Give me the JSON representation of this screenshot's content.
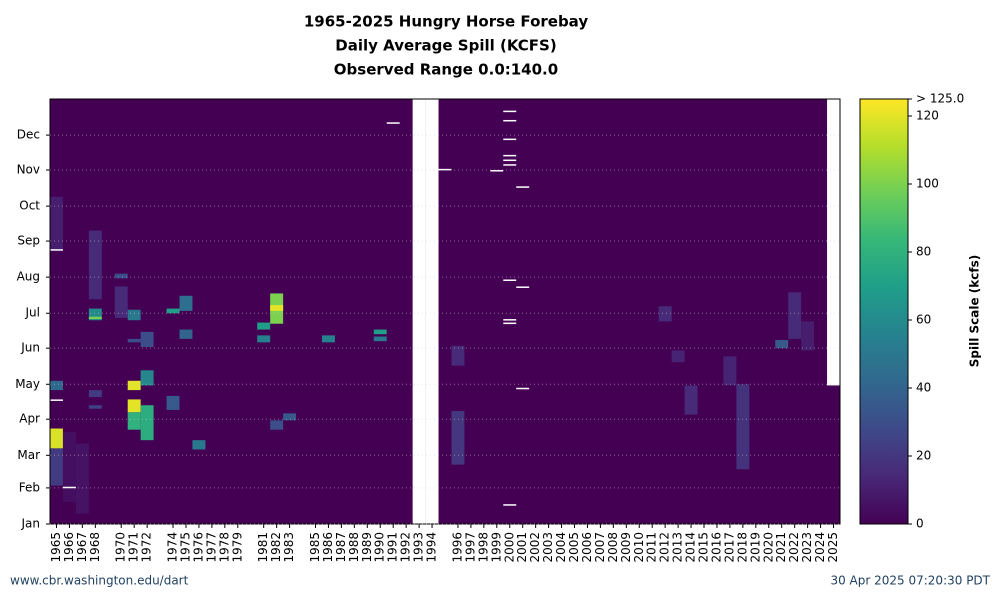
{
  "chart_data": {
    "type": "heatmap",
    "title": [
      "1965-2025 Hungry Horse Forebay",
      "Daily Average Spill (KCFS)",
      "Observed Range 0.0:140.0"
    ],
    "xlim": [
      1964.5,
      2025.5
    ],
    "xticks": [
      1965,
      1966,
      1967,
      1968,
      1970,
      1971,
      1972,
      1974,
      1975,
      1976,
      1977,
      1978,
      1979,
      1981,
      1982,
      1983,
      1985,
      1986,
      1987,
      1988,
      1989,
      1990,
      1991,
      1992,
      1993,
      1994,
      1996,
      1997,
      1998,
      1999,
      2000,
      2001,
      2002,
      2003,
      2004,
      2005,
      2006,
      2007,
      2008,
      2009,
      2010,
      2011,
      2012,
      2013,
      2014,
      2015,
      2016,
      2017,
      2018,
      2019,
      2020,
      2021,
      2022,
      2023,
      2024,
      2025
    ],
    "ylim": [
      1,
      366
    ],
    "yticks": [
      {
        "value": 1,
        "label": "Jan"
      },
      {
        "value": 32,
        "label": "Feb"
      },
      {
        "value": 60,
        "label": "Mar"
      },
      {
        "value": 91,
        "label": "Apr"
      },
      {
        "value": 121,
        "label": "May"
      },
      {
        "value": 152,
        "label": "Jun"
      },
      {
        "value": 182,
        "label": "Jul"
      },
      {
        "value": 213,
        "label": "Aug"
      },
      {
        "value": 244,
        "label": "Sep"
      },
      {
        "value": 274,
        "label": "Oct"
      },
      {
        "value": 305,
        "label": "Nov"
      },
      {
        "value": 335,
        "label": "Dec"
      }
    ],
    "grid": true,
    "colormap": "viridis",
    "zlim": [
      0,
      125
    ],
    "zticks": [
      0,
      20,
      40,
      60,
      80,
      100,
      120,
      {
        "value": 125,
        "label": "> 125.0"
      }
    ],
    "zlabel": "Spill Scale (kcfs)",
    "cells": [
      {
        "year": 1965,
        "from": 34,
        "to": 66,
        "value": 22
      },
      {
        "year": 1965,
        "from": 66,
        "to": 83,
        "value": 118
      },
      {
        "year": 1965,
        "from": 116,
        "to": 124,
        "value": 42
      },
      {
        "year": 1965,
        "from": 236,
        "to": 282,
        "value": 10
      },
      {
        "year": 1966,
        "from": 20,
        "to": 80,
        "value": 5
      },
      {
        "year": 1967,
        "from": 10,
        "to": 70,
        "value": 6
      },
      {
        "year": 1968,
        "from": 176,
        "to": 186,
        "value": 60
      },
      {
        "year": 1968,
        "from": 177,
        "to": 179,
        "value": 100
      },
      {
        "year": 1968,
        "from": 194,
        "to": 253,
        "value": 15
      },
      {
        "year": 1968,
        "from": 100,
        "to": 103,
        "value": 25
      },
      {
        "year": 1968,
        "from": 110,
        "to": 116,
        "value": 22
      },
      {
        "year": 1970,
        "from": 178,
        "to": 205,
        "value": 15
      },
      {
        "year": 1970,
        "from": 212,
        "to": 216,
        "value": 30
      },
      {
        "year": 1971,
        "from": 82,
        "to": 97,
        "value": 80
      },
      {
        "year": 1971,
        "from": 97,
        "to": 108,
        "value": 120
      },
      {
        "year": 1971,
        "from": 116,
        "to": 124,
        "value": 120
      },
      {
        "year": 1971,
        "from": 157,
        "to": 160,
        "value": 30
      },
      {
        "year": 1971,
        "from": 176,
        "to": 185,
        "value": 50
      },
      {
        "year": 1972,
        "from": 73,
        "to": 103,
        "value": 78
      },
      {
        "year": 1972,
        "from": 120,
        "to": 133,
        "value": 58
      },
      {
        "year": 1972,
        "from": 153,
        "to": 166,
        "value": 30
      },
      {
        "year": 1974,
        "from": 99,
        "to": 111,
        "value": 35
      },
      {
        "year": 1974,
        "from": 182,
        "to": 186,
        "value": 70
      },
      {
        "year": 1975,
        "from": 184,
        "to": 197,
        "value": 45
      },
      {
        "year": 1975,
        "from": 160,
        "to": 168,
        "value": 40
      },
      {
        "year": 1976,
        "from": 65,
        "to": 73,
        "value": 50
      },
      {
        "year": 1981,
        "from": 168,
        "to": 174,
        "value": 70
      },
      {
        "year": 1981,
        "from": 157,
        "to": 163,
        "value": 55
      },
      {
        "year": 1982,
        "from": 173,
        "to": 199,
        "value": 100
      },
      {
        "year": 1982,
        "from": 184,
        "to": 189,
        "value": 120
      },
      {
        "year": 1982,
        "from": 82,
        "to": 90,
        "value": 30
      },
      {
        "year": 1983,
        "from": 90,
        "to": 96,
        "value": 35
      },
      {
        "year": 1986,
        "from": 157,
        "to": 163,
        "value": 55
      },
      {
        "year": 1990,
        "from": 164,
        "to": 168,
        "value": 70
      },
      {
        "year": 1990,
        "from": 158,
        "to": 162,
        "value": 50
      },
      {
        "year": 1996,
        "from": 52,
        "to": 98,
        "value": 20
      },
      {
        "year": 1996,
        "from": 137,
        "to": 154,
        "value": 15
      },
      {
        "year": 2012,
        "from": 175,
        "to": 188,
        "value": 15
      },
      {
        "year": 2013,
        "from": 140,
        "to": 150,
        "value": 12
      },
      {
        "year": 2014,
        "from": 95,
        "to": 120,
        "value": 15
      },
      {
        "year": 2017,
        "from": 120,
        "to": 145,
        "value": 12
      },
      {
        "year": 2018,
        "from": 48,
        "to": 121,
        "value": 18
      },
      {
        "year": 2021,
        "from": 152,
        "to": 159,
        "value": 35
      },
      {
        "year": 2022,
        "from": 160,
        "to": 200,
        "value": 15
      },
      {
        "year": 2023,
        "from": 150,
        "to": 175,
        "value": 10
      }
    ],
    "missing": [
      {
        "year": 1965,
        "from": 236,
        "to": 237
      },
      {
        "year": 1965,
        "from": 107,
        "to": 108
      },
      {
        "year": 1966,
        "from": 32,
        "to": 33
      },
      {
        "year": 1991,
        "from": 345,
        "to": 346
      },
      {
        "year": 1993,
        "from": 1,
        "to": 366
      },
      {
        "year": 1994,
        "from": 1,
        "to": 366
      },
      {
        "year": 1995,
        "from": 305,
        "to": 306
      },
      {
        "year": 1999,
        "from": 304,
        "to": 305
      },
      {
        "year": 2000,
        "from": 355,
        "to": 356
      },
      {
        "year": 2000,
        "from": 347,
        "to": 348
      },
      {
        "year": 2000,
        "from": 331,
        "to": 332
      },
      {
        "year": 2000,
        "from": 317,
        "to": 318
      },
      {
        "year": 2000,
        "from": 313,
        "to": 314
      },
      {
        "year": 2000,
        "from": 309,
        "to": 310
      },
      {
        "year": 2000,
        "from": 210,
        "to": 211
      },
      {
        "year": 2000,
        "from": 176,
        "to": 177
      },
      {
        "year": 2000,
        "from": 173,
        "to": 174
      },
      {
        "year": 2000,
        "from": 17,
        "to": 18
      },
      {
        "year": 2001,
        "from": 290,
        "to": 291
      },
      {
        "year": 2001,
        "from": 204,
        "to": 205
      },
      {
        "year": 2001,
        "from": 117,
        "to": 118
      },
      {
        "year": 2025,
        "from": 120,
        "to": 366
      }
    ],
    "footer_left": "www.cbr.washington.edu/dart",
    "footer_right": "30 Apr 2025 07:20:30 PDT"
  }
}
